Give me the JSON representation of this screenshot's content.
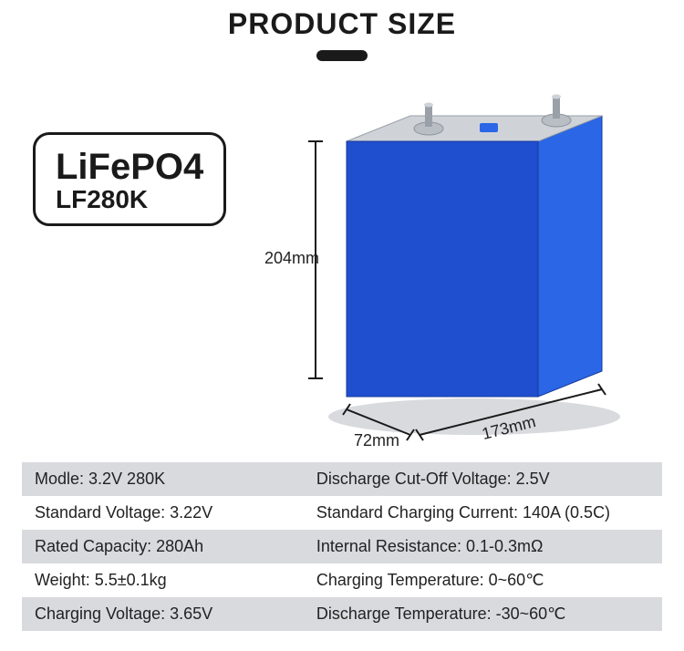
{
  "header": {
    "title": "PRODUCT SIZE"
  },
  "label": {
    "line1": "LiFePO4",
    "line2": "LF280K"
  },
  "dimensions": {
    "height": "204mm",
    "depth": "72mm",
    "width": "173mm"
  },
  "battery_style": {
    "front_fill": "#1f4fcf",
    "side_fill": "#2a66e6",
    "top_fill": "#cfd3d8",
    "top_edge": "#9aa0a8",
    "terminal_body": "#b9bec4",
    "terminal_stud": "#9aa0a8",
    "shadow": "#d8dade",
    "bracket_color": "#1a1a1a"
  },
  "specs": {
    "rows": [
      {
        "left": "Modle: 3.2V 280K",
        "right": "Discharge Cut-Off Voltage: 2.5V",
        "band": true
      },
      {
        "left": "Standard Voltage: 3.22V",
        "right": "Standard Charging Current: 140A (0.5C)",
        "band": false
      },
      {
        "left": "Rated Capacity: 280Ah",
        "right": "Internal Resistance: 0.1-0.3mΩ",
        "band": true
      },
      {
        "left": "Weight: 5.5±0.1kg",
        "right": "Charging Temperature: 0~60℃",
        "band": false
      },
      {
        "left": "Charging Voltage: 3.65V",
        "right": "Discharge Temperature: -30~60℃",
        "band": true
      }
    ],
    "band_color": "#d9dade",
    "plain_color": "#ffffff",
    "text_color": "#222222",
    "font_size_pt": 13
  }
}
